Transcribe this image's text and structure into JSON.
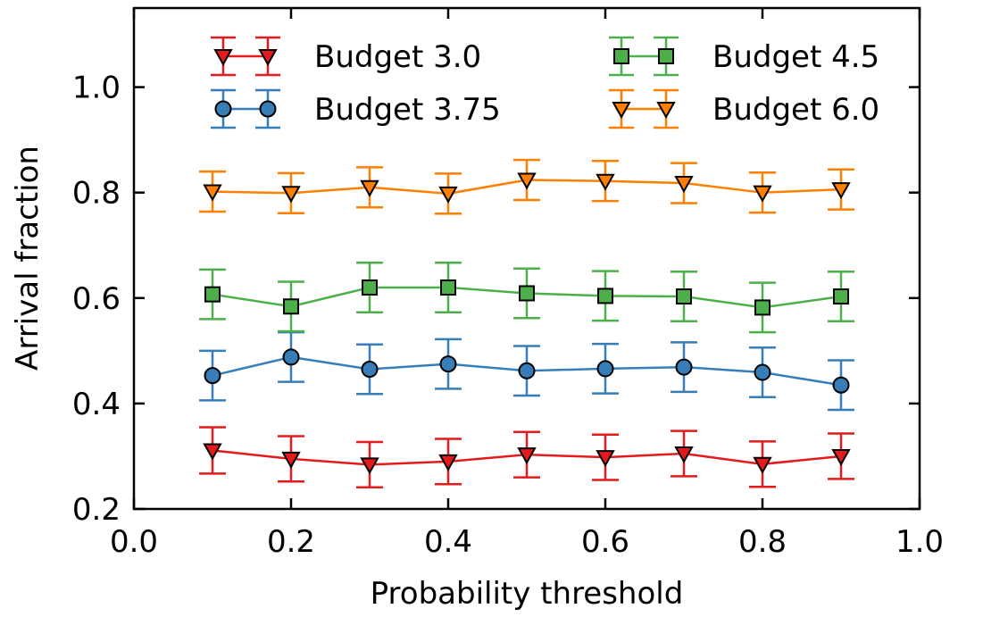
{
  "chart_data": {
    "type": "line",
    "title": "",
    "xlabel": "Probability threshold",
    "ylabel": "Arrival fraction",
    "xlim": [
      0.0,
      1.0
    ],
    "ylim": [
      0.2,
      1.15
    ],
    "xticks": [
      "0.0",
      "0.2",
      "0.4",
      "0.6",
      "0.8",
      "1.0"
    ],
    "yticks": [
      "0.2",
      "0.4",
      "0.6",
      "0.8",
      "1.0"
    ],
    "grid": false,
    "legend_position": "top",
    "x": [
      0.1,
      0.2,
      0.3,
      0.4,
      0.5,
      0.6,
      0.7,
      0.8,
      0.9
    ],
    "series": [
      {
        "name": "Budget 3.0",
        "color": "#e41a1c",
        "marker": "triangle-down",
        "values": [
          0.311,
          0.295,
          0.284,
          0.29,
          0.303,
          0.298,
          0.305,
          0.285,
          0.3
        ],
        "errors": [
          0.044,
          0.043,
          0.043,
          0.043,
          0.043,
          0.043,
          0.043,
          0.043,
          0.043
        ]
      },
      {
        "name": "Budget 3.75",
        "color": "#377eb8",
        "marker": "circle",
        "values": [
          0.453,
          0.488,
          0.465,
          0.475,
          0.462,
          0.466,
          0.469,
          0.459,
          0.435
        ],
        "errors": [
          0.047,
          0.047,
          0.047,
          0.047,
          0.047,
          0.047,
          0.047,
          0.047,
          0.047
        ]
      },
      {
        "name": "Budget 4.5",
        "color": "#4daf4a",
        "marker": "square",
        "values": [
          0.607,
          0.584,
          0.62,
          0.62,
          0.609,
          0.604,
          0.603,
          0.582,
          0.603
        ],
        "errors": [
          0.047,
          0.047,
          0.047,
          0.047,
          0.047,
          0.047,
          0.047,
          0.047,
          0.047
        ]
      },
      {
        "name": "Budget 6.0",
        "color": "#ff7f00",
        "marker": "triangle-down",
        "values": [
          0.802,
          0.799,
          0.81,
          0.798,
          0.824,
          0.822,
          0.818,
          0.8,
          0.806
        ],
        "errors": [
          0.038,
          0.038,
          0.038,
          0.038,
          0.038,
          0.038,
          0.038,
          0.038,
          0.038
        ]
      }
    ]
  }
}
